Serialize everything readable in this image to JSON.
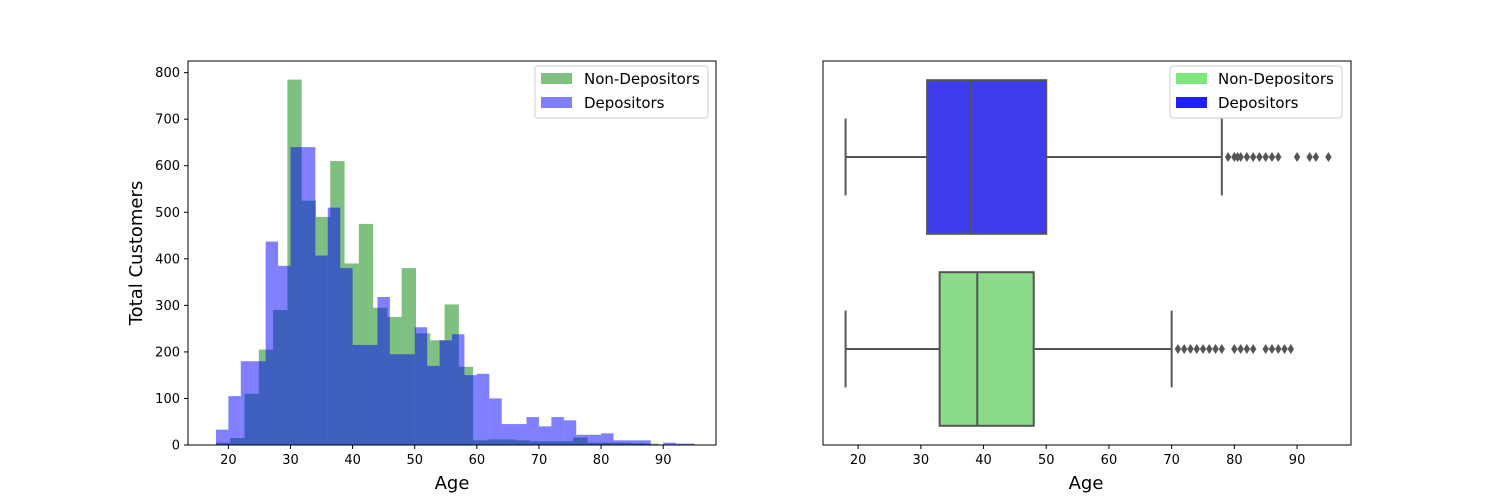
{
  "chart_data": [
    {
      "type": "histogram",
      "title": "",
      "xlabel": "Age",
      "ylabel": "Total Customers",
      "xlim": [
        13.5,
        98.5
      ],
      "ylim": [
        0,
        825
      ],
      "xticks": [
        "20",
        "30",
        "40",
        "50",
        "60",
        "70",
        "80",
        "90"
      ],
      "yticks": [
        "0",
        "100",
        "200",
        "300",
        "400",
        "500",
        "600",
        "700",
        "800"
      ],
      "grid": false,
      "legend": "top-right",
      "series": [
        {
          "name": "Non-Depositors",
          "color": "#008000",
          "opacity": 0.5,
          "bins": [
            {
              "x0": 18.0,
              "x1": 20.3,
              "value": 5
            },
            {
              "x0": 20.3,
              "x1": 22.6,
              "value": 15
            },
            {
              "x0": 22.6,
              "x1": 24.9,
              "value": 110
            },
            {
              "x0": 24.9,
              "x1": 27.2,
              "value": 205
            },
            {
              "x0": 27.2,
              "x1": 29.5,
              "value": 290
            },
            {
              "x0": 29.5,
              "x1": 31.8,
              "value": 785
            },
            {
              "x0": 31.8,
              "x1": 34.1,
              "value": 525
            },
            {
              "x0": 34.1,
              "x1": 36.4,
              "value": 490
            },
            {
              "x0": 36.4,
              "x1": 38.7,
              "value": 610
            },
            {
              "x0": 38.7,
              "x1": 41.0,
              "value": 390
            },
            {
              "x0": 41.0,
              "x1": 43.3,
              "value": 475
            },
            {
              "x0": 43.3,
              "x1": 45.6,
              "value": 295
            },
            {
              "x0": 45.6,
              "x1": 47.9,
              "value": 275
            },
            {
              "x0": 47.9,
              "x1": 50.2,
              "value": 380
            },
            {
              "x0": 50.2,
              "x1": 52.5,
              "value": 240
            },
            {
              "x0": 52.5,
              "x1": 54.8,
              "value": 225
            },
            {
              "x0": 54.8,
              "x1": 57.1,
              "value": 302
            },
            {
              "x0": 57.1,
              "x1": 59.4,
              "value": 168
            },
            {
              "x0": 59.4,
              "x1": 61.7,
              "value": 10
            },
            {
              "x0": 61.7,
              "x1": 64.0,
              "value": 12
            },
            {
              "x0": 64.0,
              "x1": 66.3,
              "value": 12
            },
            {
              "x0": 66.3,
              "x1": 68.6,
              "value": 10
            },
            {
              "x0": 68.6,
              "x1": 70.9,
              "value": 8
            },
            {
              "x0": 70.9,
              "x1": 73.2,
              "value": 8
            },
            {
              "x0": 73.2,
              "x1": 75.5,
              "value": 8
            },
            {
              "x0": 75.5,
              "x1": 77.8,
              "value": 16
            },
            {
              "x0": 77.8,
              "x1": 80.1,
              "value": 5
            },
            {
              "x0": 80.1,
              "x1": 82.4,
              "value": 5
            },
            {
              "x0": 82.4,
              "x1": 84.7,
              "value": 5
            },
            {
              "x0": 84.7,
              "x1": 87.0,
              "value": 4
            },
            {
              "x0": 87.0,
              "x1": 89.3,
              "value": 3
            }
          ]
        },
        {
          "name": "Depositors",
          "color": "#0000ff",
          "opacity": 0.5,
          "bins": [
            {
              "x0": 18.0,
              "x1": 20.0,
              "value": 33
            },
            {
              "x0": 20.0,
              "x1": 22.0,
              "value": 105
            },
            {
              "x0": 22.0,
              "x1": 24.0,
              "value": 180
            },
            {
              "x0": 24.0,
              "x1": 26.0,
              "value": 180
            },
            {
              "x0": 26.0,
              "x1": 28.0,
              "value": 437
            },
            {
              "x0": 28.0,
              "x1": 30.0,
              "value": 385
            },
            {
              "x0": 30.0,
              "x1": 32.0,
              "value": 640
            },
            {
              "x0": 32.0,
              "x1": 34.0,
              "value": 640
            },
            {
              "x0": 34.0,
              "x1": 36.0,
              "value": 407
            },
            {
              "x0": 36.0,
              "x1": 38.0,
              "value": 510
            },
            {
              "x0": 38.0,
              "x1": 40.0,
              "value": 380
            },
            {
              "x0": 40.0,
              "x1": 42.0,
              "value": 215
            },
            {
              "x0": 42.0,
              "x1": 44.0,
              "value": 215
            },
            {
              "x0": 44.0,
              "x1": 46.0,
              "value": 318
            },
            {
              "x0": 46.0,
              "x1": 48.0,
              "value": 195
            },
            {
              "x0": 48.0,
              "x1": 50.0,
              "value": 195
            },
            {
              "x0": 50.0,
              "x1": 52.0,
              "value": 253
            },
            {
              "x0": 52.0,
              "x1": 54.0,
              "value": 170
            },
            {
              "x0": 54.0,
              "x1": 56.0,
              "value": 225
            },
            {
              "x0": 56.0,
              "x1": 58.0,
              "value": 238
            },
            {
              "x0": 58.0,
              "x1": 60.0,
              "value": 150
            },
            {
              "x0": 60.0,
              "x1": 62.0,
              "value": 153
            },
            {
              "x0": 62.0,
              "x1": 64.0,
              "value": 100
            },
            {
              "x0": 64.0,
              "x1": 66.0,
              "value": 45
            },
            {
              "x0": 66.0,
              "x1": 68.0,
              "value": 45
            },
            {
              "x0": 68.0,
              "x1": 70.0,
              "value": 60
            },
            {
              "x0": 70.0,
              "x1": 72.0,
              "value": 40
            },
            {
              "x0": 72.0,
              "x1": 74.0,
              "value": 60
            },
            {
              "x0": 74.0,
              "x1": 76.0,
              "value": 53
            },
            {
              "x0": 76.0,
              "x1": 78.0,
              "value": 22
            },
            {
              "x0": 78.0,
              "x1": 80.0,
              "value": 22
            },
            {
              "x0": 80.0,
              "x1": 82.0,
              "value": 25
            },
            {
              "x0": 82.0,
              "x1": 84.0,
              "value": 10
            },
            {
              "x0": 84.0,
              "x1": 86.0,
              "value": 10
            },
            {
              "x0": 86.0,
              "x1": 88.0,
              "value": 10
            },
            {
              "x0": 88.0,
              "x1": 90.0,
              "value": 0
            },
            {
              "x0": 90.0,
              "x1": 92.0,
              "value": 5
            },
            {
              "x0": 92.0,
              "x1": 94.0,
              "value": 3
            },
            {
              "x0": 94.0,
              "x1": 95.0,
              "value": 3
            }
          ]
        }
      ]
    },
    {
      "type": "boxplot",
      "title": "",
      "xlabel": "Age",
      "ylabel": "",
      "xlim": [
        14.4,
        98.6
      ],
      "xticks": [
        "20",
        "30",
        "40",
        "50",
        "60",
        "70",
        "80",
        "90"
      ],
      "grid": false,
      "legend": "top-right",
      "series": [
        {
          "name": "Depositors",
          "color": "#3d3deb",
          "legend_color": "#1f1fff",
          "whisker_low": 18,
          "q1": 31,
          "median": 38,
          "q3": 50,
          "whisker_high": 78,
          "outliers": [
            79,
            80,
            80.5,
            81,
            82,
            83,
            84,
            85,
            86,
            87,
            90,
            92,
            93,
            95
          ]
        },
        {
          "name": "Non-Depositors",
          "color": "#8cdb8a",
          "legend_color": "#7ee87e",
          "whisker_low": 18,
          "q1": 33,
          "median": 39,
          "q3": 48,
          "whisker_high": 70,
          "outliers": [
            71,
            72,
            73,
            74,
            75,
            76,
            77,
            78,
            80,
            81,
            82,
            83,
            85,
            86,
            87,
            88,
            89
          ]
        }
      ]
    }
  ]
}
